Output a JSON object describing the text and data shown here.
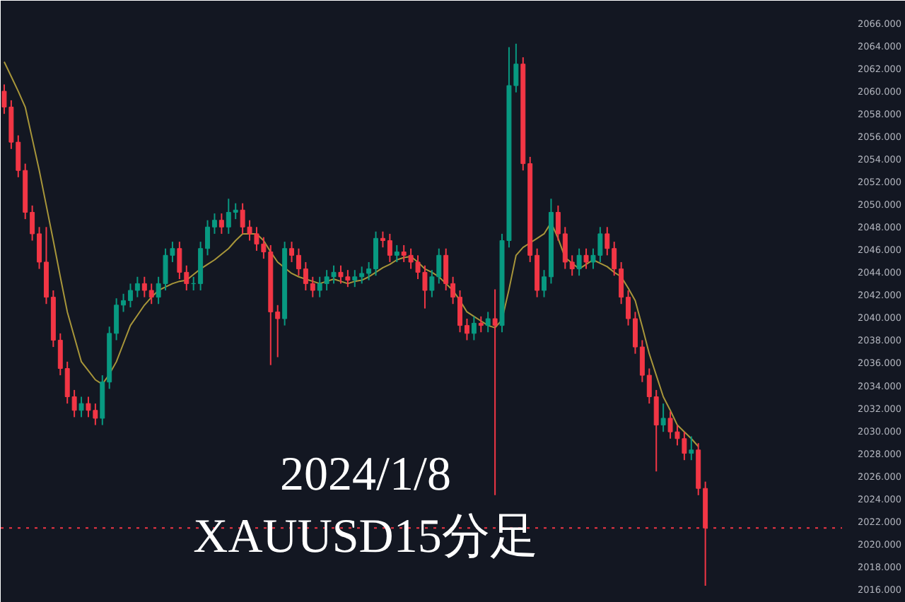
{
  "chart_data": {
    "type": "candlestick",
    "categories": [
      null,
      null,
      null,
      null,
      null,
      null,
      null,
      null,
      null,
      null,
      null,
      null,
      null,
      null,
      null,
      null,
      null,
      null,
      null,
      null,
      null,
      null,
      null,
      null,
      null,
      null,
      null,
      null,
      null,
      null,
      null,
      null,
      null,
      null,
      null,
      null,
      null,
      null,
      null,
      null,
      null,
      null,
      null,
      null,
      null,
      null,
      null,
      null,
      null,
      null,
      null,
      null,
      null,
      null,
      null,
      null,
      null,
      null,
      null,
      null,
      null,
      null,
      null,
      null,
      null,
      null,
      null,
      null,
      null,
      null,
      null,
      null,
      null,
      null,
      null,
      null,
      null,
      null,
      null,
      null,
      null,
      null,
      null,
      null,
      null,
      null,
      null,
      null,
      null,
      null,
      null,
      null,
      null,
      null,
      null,
      null,
      null,
      null,
      null,
      null,
      null,
      null,
      null,
      null,
      null,
      null,
      null,
      null,
      null,
      null,
      null,
      null,
      null,
      null,
      null,
      null,
      null,
      null,
      null,
      null
    ],
    "ohlc": [
      [
        2060,
        2060.6,
        2058,
        2058.6
      ],
      [
        2058.6,
        2059.2,
        2054.9,
        2055.5
      ],
      [
        2055.5,
        2056.1,
        2052.4,
        2053
      ],
      [
        2053,
        2053.6,
        2048.7,
        2049.3
      ],
      [
        2049.3,
        2049.9,
        2046.8,
        2047.4
      ],
      [
        2047.4,
        2048,
        2044.3,
        2044.9
      ],
      [
        2044.9,
        2048,
        2041.2,
        2041.8
      ],
      [
        2041.8,
        2042.4,
        2037.4,
        2038
      ],
      [
        2038,
        2038.6,
        2034.9,
        2035.5
      ],
      [
        2035.5,
        2036.1,
        2032.4,
        2033
      ],
      [
        2033,
        2033.6,
        2031.2,
        2031.8
      ],
      [
        2031.8,
        2033,
        2031.2,
        2032.4
      ],
      [
        2032.4,
        2033,
        2031.2,
        2031.8
      ],
      [
        2031.8,
        2032.4,
        2030.5,
        2031.1
      ],
      [
        2031.1,
        2034.9,
        2030.5,
        2034.3
      ],
      [
        2034.3,
        2039.2,
        2033.7,
        2038.6
      ],
      [
        2038.6,
        2041.7,
        2038,
        2041.1
      ],
      [
        2041.1,
        2042.1,
        2040.5,
        2041.5
      ],
      [
        2041.5,
        2043,
        2040.9,
        2042.4
      ],
      [
        2042.4,
        2043.6,
        2041.8,
        2043
      ],
      [
        2043,
        2043.6,
        2041.8,
        2042.4
      ],
      [
        2042.4,
        2043,
        2041.2,
        2041.8
      ],
      [
        2041.8,
        2043.6,
        2041.2,
        2043
      ],
      [
        2043,
        2046.1,
        2042.4,
        2045.5
      ],
      [
        2045.5,
        2046.7,
        2044.9,
        2046.1
      ],
      [
        2046.1,
        2046.7,
        2043.4,
        2044
      ],
      [
        2044,
        2044.6,
        2042.4,
        2043
      ],
      [
        2043,
        2043.6,
        2042.4,
        2043
      ],
      [
        2043,
        2046.7,
        2042.4,
        2046.1
      ],
      [
        2046.1,
        2048.6,
        2045.5,
        2048
      ],
      [
        2048,
        2049.2,
        2047.4,
        2048.6
      ],
      [
        2048.6,
        2049.2,
        2047.4,
        2048
      ],
      [
        2048,
        2050.5,
        2047.4,
        2049.3
      ],
      [
        2049.3,
        2050.1,
        2048.7,
        2049.5
      ],
      [
        2049.5,
        2050.1,
        2047.4,
        2048
      ],
      [
        2048,
        2048.6,
        2046.8,
        2047.4
      ],
      [
        2047.4,
        2048,
        2045.9,
        2046.5
      ],
      [
        2046.5,
        2047.1,
        2045.2,
        2045.8
      ],
      [
        2045.8,
        2046.4,
        2035.8,
        2040.5
      ],
      [
        2040.5,
        2041.1,
        2036.5,
        2039.9
      ],
      [
        2039.9,
        2046.7,
        2039.3,
        2046.1
      ],
      [
        2046.1,
        2046.7,
        2044.9,
        2045.5
      ],
      [
        2045.5,
        2046.1,
        2043.7,
        2044.3
      ],
      [
        2044.3,
        2044.9,
        2042.4,
        2043
      ],
      [
        2043,
        2043.6,
        2041.8,
        2042.4
      ],
      [
        2042.4,
        2043.6,
        2041.8,
        2043
      ],
      [
        2043,
        2044.2,
        2042.4,
        2043.6
      ],
      [
        2043.6,
        2044.6,
        2043,
        2044
      ],
      [
        2044,
        2044.6,
        2043,
        2043.6
      ],
      [
        2043.6,
        2044.2,
        2042.7,
        2043.3
      ],
      [
        2043.3,
        2044.2,
        2042.7,
        2043.6
      ],
      [
        2043.6,
        2044.5,
        2043,
        2043.9
      ],
      [
        2043.9,
        2044.9,
        2043.3,
        2044.3
      ],
      [
        2044.3,
        2047.6,
        2043.7,
        2047
      ],
      [
        2047,
        2047.6,
        2046.2,
        2046.8
      ],
      [
        2046.8,
        2047.4,
        2044.9,
        2045.5
      ],
      [
        2045.5,
        2046.4,
        2044.9,
        2045.8
      ],
      [
        2045.8,
        2046.4,
        2044.9,
        2045.5
      ],
      [
        2045.5,
        2046.1,
        2044.3,
        2044.9
      ],
      [
        2044.9,
        2045.5,
        2043.4,
        2044
      ],
      [
        2044,
        2044.6,
        2040.8,
        2042.4
      ],
      [
        2042.4,
        2044.2,
        2041.8,
        2043.6
      ],
      [
        2043.6,
        2046.1,
        2043,
        2045.5
      ],
      [
        2045.5,
        2046.1,
        2042.4,
        2043
      ],
      [
        2043,
        2043.6,
        2041.2,
        2041.8
      ],
      [
        2041.8,
        2042.4,
        2038.7,
        2039.3
      ],
      [
        2039.3,
        2039.9,
        2038,
        2038.6
      ],
      [
        2038.6,
        2040.1,
        2038,
        2039.5
      ],
      [
        2039.5,
        2040.1,
        2038.7,
        2039.3
      ],
      [
        2039.3,
        2040.5,
        2038.7,
        2039.9
      ],
      [
        2039.9,
        2042.5,
        2024.3,
        2039.3
      ],
      [
        2039.3,
        2047.4,
        2038.7,
        2046.8
      ],
      [
        2046.8,
        2063.9,
        2046.2,
        2060.5
      ],
      [
        2060.5,
        2064.2,
        2059.9,
        2062.4
      ],
      [
        2062.4,
        2063,
        2053,
        2053.6
      ],
      [
        2053.6,
        2054.2,
        2044.9,
        2045.5
      ],
      [
        2045.5,
        2046.1,
        2041.8,
        2042.4
      ],
      [
        2042.4,
        2044.2,
        2041.8,
        2043.6
      ],
      [
        2043.6,
        2050.5,
        2043,
        2049.3
      ],
      [
        2049.3,
        2049.9,
        2046.8,
        2047.4
      ],
      [
        2047.4,
        2048,
        2044.3,
        2044.9
      ],
      [
        2044.9,
        2045.5,
        2043.7,
        2044.3
      ],
      [
        2044.3,
        2046.1,
        2043.7,
        2045.5
      ],
      [
        2045.5,
        2046.1,
        2044.3,
        2044.9
      ],
      [
        2044.9,
        2046.1,
        2044.3,
        2045.5
      ],
      [
        2045.5,
        2048,
        2044.9,
        2047.4
      ],
      [
        2047.4,
        2048,
        2045.5,
        2046.1
      ],
      [
        2046.1,
        2046.7,
        2043.7,
        2044.3
      ],
      [
        2044.3,
        2044.9,
        2041.2,
        2041.8
      ],
      [
        2041.8,
        2042.4,
        2039.3,
        2039.9
      ],
      [
        2039.9,
        2040.5,
        2036.8,
        2037.4
      ],
      [
        2037.4,
        2038,
        2034.3,
        2034.9
      ],
      [
        2034.9,
        2035.5,
        2032.4,
        2033
      ],
      [
        2033,
        2033.6,
        2026.4,
        2030.5
      ],
      [
        2030.5,
        2032.4,
        2029.9,
        2031.1
      ],
      [
        2031.1,
        2031.7,
        2029.3,
        2029.9
      ],
      [
        2029.9,
        2030.5,
        2028.7,
        2029.3
      ],
      [
        2029.3,
        2029.9,
        2027.4,
        2028
      ],
      [
        2028,
        2029.5,
        2027.4,
        2028.3
      ],
      [
        2028.3,
        2028.9,
        2024.3,
        2024.9
      ],
      [
        2024.9,
        2025.5,
        2016.3,
        2021.4
      ],
      null,
      null,
      null,
      null,
      null,
      null,
      null,
      null,
      null,
      null,
      null,
      null,
      null,
      null,
      null,
      null,
      null,
      null,
      null
    ],
    "colors": [
      "#f23645",
      "#f23645",
      "#f23645",
      "#f23645",
      "#f23645",
      "#f23645",
      "#f23645",
      "#f23645",
      "#f23645",
      "#f23645",
      "#f23645",
      "#089981",
      "#f23645",
      "#f23645",
      "#089981",
      "#089981",
      "#089981",
      "#089981",
      "#089981",
      "#089981",
      "#f23645",
      "#f23645",
      "#089981",
      "#089981",
      "#089981",
      "#f23645",
      "#f23645",
      "#089981",
      "#089981",
      "#089981",
      "#089981",
      "#f23645",
      "#089981",
      "#089981",
      "#f23645",
      "#f23645",
      "#f23645",
      "#f23645",
      "#f23645",
      "#f23645",
      "#089981",
      "#f23645",
      "#f23645",
      "#f23645",
      "#f23645",
      "#089981",
      "#089981",
      "#089981",
      "#f23645",
      "#f23645",
      "#089981",
      "#089981",
      "#089981",
      "#089981",
      "#f23645",
      "#f23645",
      "#089981",
      "#f23645",
      "#f23645",
      "#f23645",
      "#f23645",
      "#089981",
      "#089981",
      "#f23645",
      "#f23645",
      "#f23645",
      "#f23645",
      "#089981",
      "#f23645",
      "#089981",
      "#f23645",
      "#089981",
      "#089981",
      "#089981",
      "#f23645",
      "#f23645",
      "#f23645",
      "#089981",
      "#089981",
      "#f23645",
      "#f23645",
      "#f23645",
      "#089981",
      "#f23645",
      "#089981",
      "#089981",
      "#f23645",
      "#f23645",
      "#f23645",
      "#f23645",
      "#f23645",
      "#f23645",
      "#f23645",
      "#f23645",
      "#089981",
      "#f23645",
      "#f23645",
      "#f23645",
      "#089981",
      "#f23645",
      "#f23645",
      null,
      null,
      null,
      null,
      null,
      null,
      null,
      null,
      null,
      null,
      null,
      null,
      null,
      null,
      null,
      null,
      null,
      null,
      null
    ],
    "series": [
      {
        "type": "line",
        "color": "#a8963a",
        "values": [
          2062.6,
          2061.3,
          2060,
          2058.6,
          2055.8,
          2053,
          2049.9,
          2046.8,
          2043.6,
          2040.5,
          2038.3,
          2036.1,
          2035.3,
          2034.5,
          2034.1,
          2035,
          2036.1,
          2037.7,
          2039.3,
          2040.2,
          2041.1,
          2041.8,
          2042.4,
          2042.7,
          2043,
          2043.2,
          2043.3,
          2043.8,
          2044.3,
          2044.7,
          2045.1,
          2045.6,
          2046.1,
          2046.8,
          2047.4,
          2047.4,
          2047.4,
          2046.8,
          2045.8,
          2044.9,
          2044.4,
          2043.9,
          2043.6,
          2043.4,
          2043.2,
          2043,
          2043.2,
          2043.4,
          2043.2,
          2043,
          2043.2,
          2043.3,
          2043.6,
          2044,
          2044.4,
          2044.7,
          2045.1,
          2045.3,
          2045.4,
          2044.9,
          2044.3,
          2044,
          2043.6,
          2043,
          2042.4,
          2041.5,
          2040.5,
          2040.1,
          2039.7,
          2039.3,
          2039.1,
          2039.8,
          2042.5,
          2045.5,
          2046.2,
          2046.6,
          2047,
          2047.4,
          2048.4,
          2047,
          2045.3,
          2044.8,
          2044.3,
          2044.7,
          2045.1,
          2044.8,
          2044.5,
          2044,
          2043.6,
          2042.6,
          2041.5,
          2039.2,
          2036.8,
          2034.9,
          2033,
          2031.8,
          2030.5,
          2029.9,
          2029.3,
          2028.6,
          null,
          null,
          null,
          null,
          null,
          null,
          null,
          null,
          null,
          null,
          null,
          null,
          null,
          null,
          null,
          null,
          null,
          null,
          null,
          null
        ]
      }
    ],
    "ylim": [
      2014.8,
      2068
    ],
    "yticks": [
      {
        "value": 2016,
        "label": "2016.000"
      },
      {
        "value": 2018,
        "label": "2018.000"
      },
      {
        "value": 2020,
        "label": "2020.000"
      },
      {
        "value": 2022,
        "label": "2022.000"
      },
      {
        "value": 2024,
        "label": "2024.000"
      },
      {
        "value": 2026,
        "label": "2026.000"
      },
      {
        "value": 2028,
        "label": "2028.000"
      },
      {
        "value": 2030,
        "label": "2030.000"
      },
      {
        "value": 2032,
        "label": "2032.000"
      },
      {
        "value": 2034,
        "label": "2034.000"
      },
      {
        "value": 2036,
        "label": "2036.000"
      },
      {
        "value": 2038,
        "label": "2038.000"
      },
      {
        "value": 2040,
        "label": "2040.000"
      },
      {
        "value": 2042,
        "label": "2042.000"
      },
      {
        "value": 2044,
        "label": "2044.000"
      },
      {
        "value": 2046,
        "label": "2046.000"
      },
      {
        "value": 2048,
        "label": "2048.000"
      },
      {
        "value": 2050,
        "label": "2050.000"
      },
      {
        "value": 2052,
        "label": "2052.000"
      },
      {
        "value": 2054,
        "label": "2054.000"
      },
      {
        "value": 2056,
        "label": "2056.000"
      },
      {
        "value": 2058,
        "label": "2058.000"
      },
      {
        "value": 2060,
        "label": "2060.000"
      },
      {
        "value": 2062,
        "label": "2062.000"
      },
      {
        "value": 2064,
        "label": "2064.000"
      },
      {
        "value": 2066,
        "label": "2066.000"
      }
    ],
    "tick_labels": "y",
    "ref_lines": [
      {
        "axis": "y",
        "value": 2021.4,
        "color": "#f23645",
        "line_style": "dotted"
      }
    ],
    "annotations": [
      "2024/1/8",
      "XAUUSD15分足"
    ]
  }
}
